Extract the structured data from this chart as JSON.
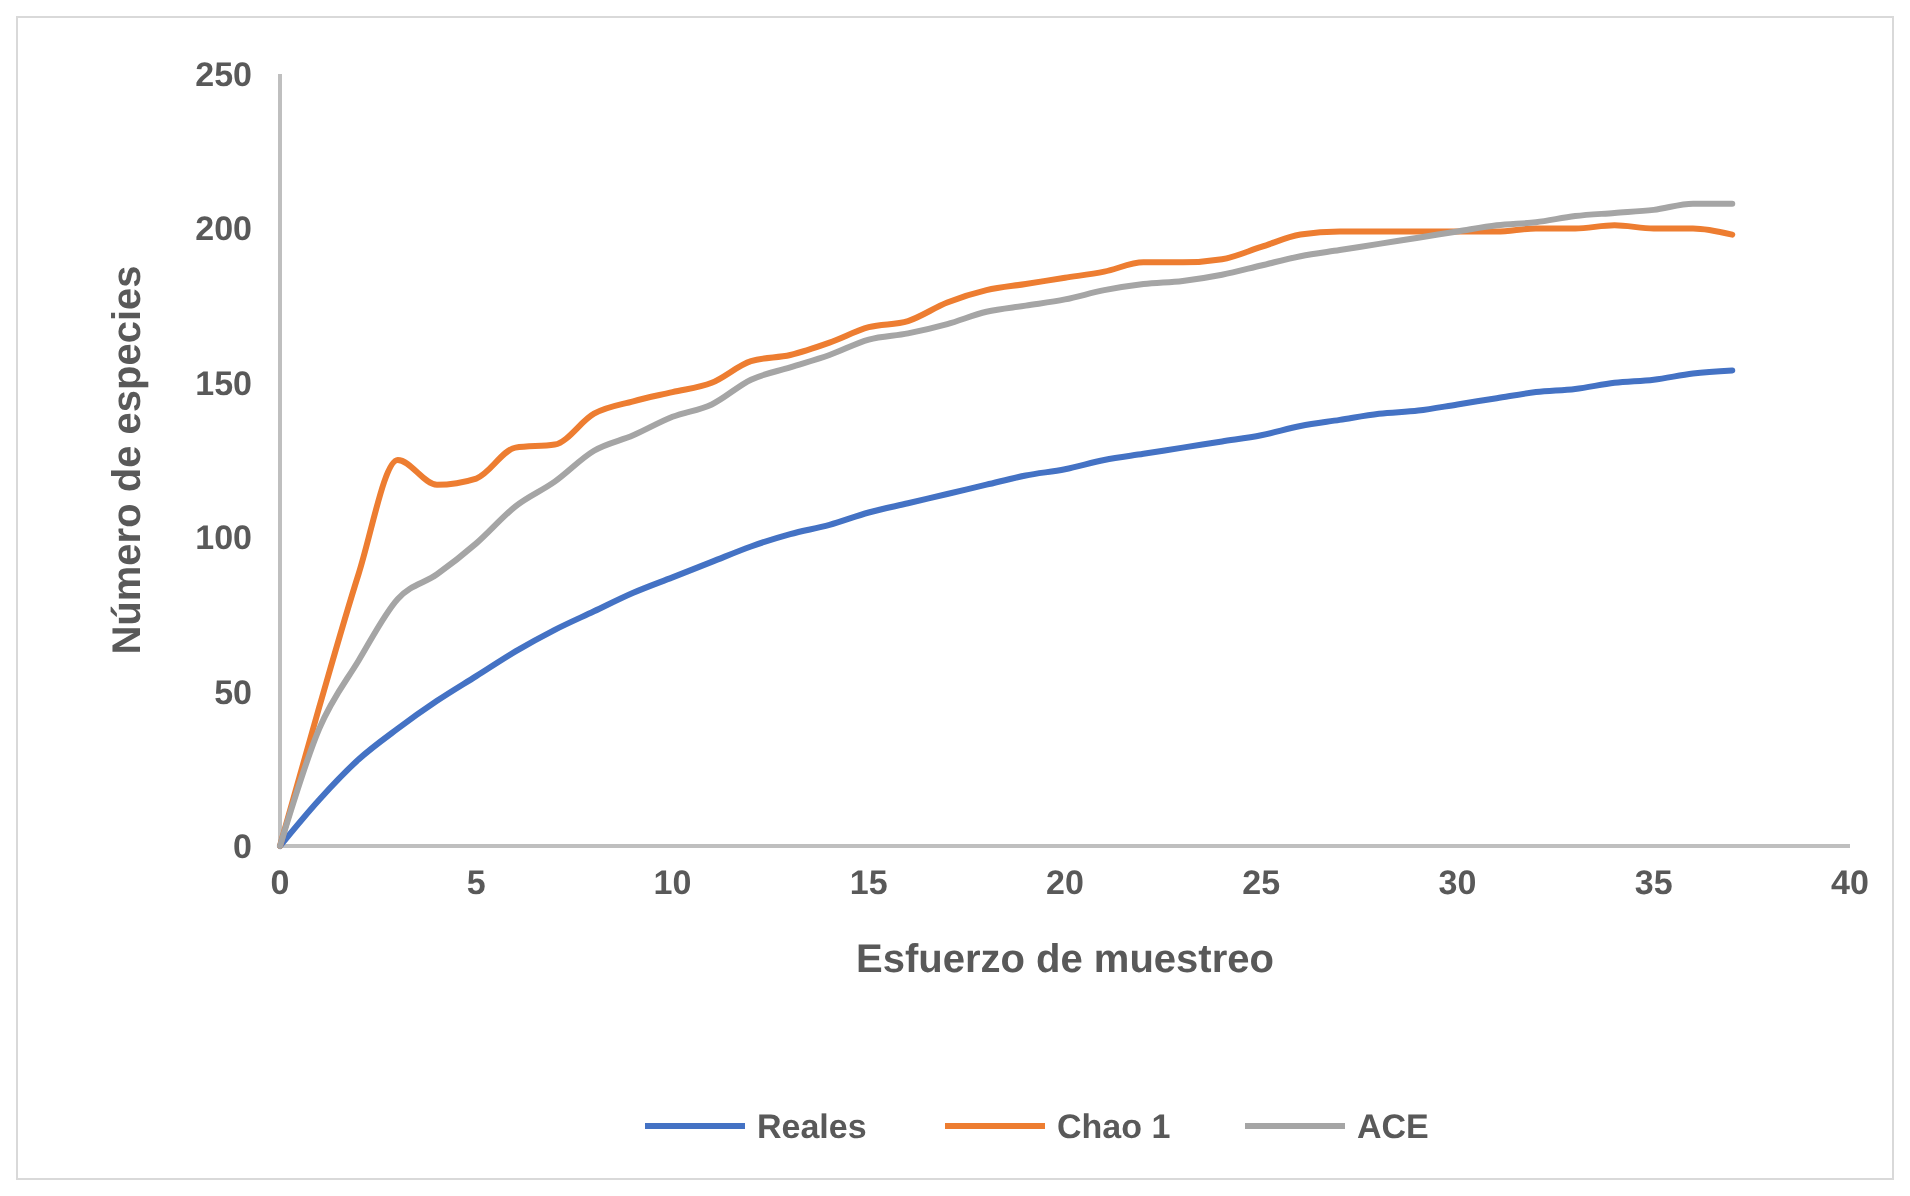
{
  "chart_data": {
    "type": "line",
    "xlabel": "Esfuerzo de muestreo",
    "ylabel": "Número de especies",
    "x": [
      0,
      1,
      2,
      3,
      4,
      5,
      6,
      7,
      8,
      9,
      10,
      11,
      12,
      13,
      14,
      15,
      16,
      17,
      18,
      19,
      20,
      21,
      22,
      23,
      24,
      25,
      26,
      27,
      28,
      29,
      30,
      31,
      32,
      33,
      34,
      35,
      36,
      37
    ],
    "xlim": [
      0,
      40
    ],
    "xticks": [
      0,
      5,
      10,
      15,
      20,
      25,
      30,
      35,
      40
    ],
    "ylim": [
      0,
      250
    ],
    "yticks": [
      0,
      50,
      100,
      150,
      200,
      250
    ],
    "grid": false,
    "legend": "bottom",
    "marker": "none",
    "line_style": "solid",
    "series": [
      {
        "name": "Reales",
        "color": "#4472c4",
        "values": [
          0,
          15,
          28,
          38,
          47,
          55,
          63,
          70,
          76,
          82,
          87,
          92,
          97,
          101,
          104,
          108,
          111,
          114,
          117,
          120,
          122,
          125,
          127,
          129,
          131,
          133,
          136,
          138,
          140,
          141,
          143,
          145,
          147,
          148,
          150,
          151,
          153,
          154
        ]
      },
      {
        "name": "Chao 1",
        "color": "#ed7d31",
        "values": [
          0,
          45,
          88,
          125,
          117,
          119,
          129,
          130,
          140,
          144,
          147,
          150,
          157,
          159,
          163,
          168,
          170,
          176,
          180,
          182,
          184,
          186,
          189,
          189,
          190,
          194,
          198,
          199,
          199,
          199,
          199,
          199,
          200,
          200,
          201,
          200,
          200,
          198
        ]
      },
      {
        "name": "ACE",
        "color": "#a5a5a5",
        "values": [
          0,
          38,
          60,
          80,
          88,
          98,
          110,
          118,
          128,
          133,
          139,
          143,
          151,
          155,
          159,
          164,
          166,
          169,
          173,
          175,
          177,
          180,
          182,
          183,
          185,
          188,
          191,
          193,
          195,
          197,
          199,
          201,
          202,
          204,
          205,
          206,
          208,
          208
        ]
      }
    ]
  }
}
